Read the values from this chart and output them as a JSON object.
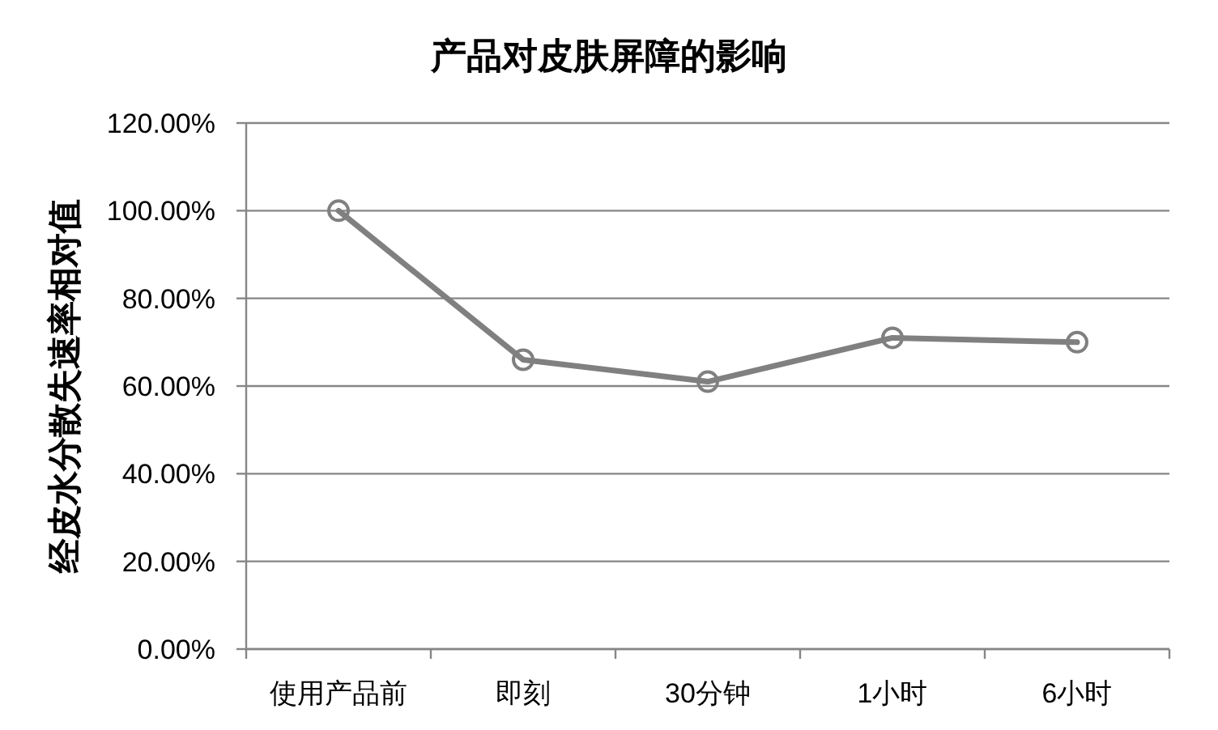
{
  "chart_data": {
    "type": "line",
    "title": "产品对皮肤屏障的影响",
    "ylabel": "经皮水分散失速率相对值",
    "categories": [
      "使用产品前",
      "即刻",
      "30分钟",
      "1小时",
      "6小时"
    ],
    "series": [
      {
        "color": "#808080",
        "values": [
          100,
          66,
          61,
          71,
          70
        ]
      }
    ],
    "ylim": [
      0,
      120
    ],
    "yticks": [
      {
        "value": 0,
        "label": "0.00%"
      },
      {
        "value": 20,
        "label": "20.00%"
      },
      {
        "value": 40,
        "label": "40.00%"
      },
      {
        "value": 60,
        "label": "60.00%"
      },
      {
        "value": 80,
        "label": "80.00%"
      },
      {
        "value": 100,
        "label": "100.00%"
      },
      {
        "value": 120,
        "label": "120.00%"
      }
    ],
    "grid": "y",
    "marker": "circle",
    "line_style": "solid"
  }
}
